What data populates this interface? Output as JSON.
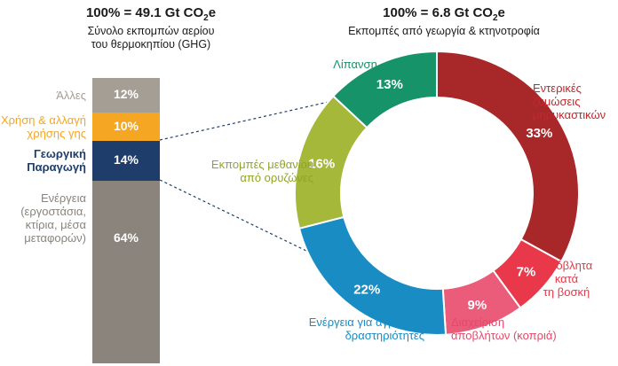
{
  "chart_data": [
    {
      "type": "bar",
      "stacked": true,
      "title_prefix": "100% = 49.1 Gt CO",
      "title_sub": "2",
      "title_suffix": "e",
      "subtitle": [
        "Σύνολο εκπομπών αερίου",
        "του θερμοκηπίου (GHG)"
      ],
      "unit": "%",
      "ylim": [
        0,
        100
      ],
      "segments": [
        {
          "label": [
            "Άλλες"
          ],
          "value": 12,
          "color": "#a59e95",
          "label_color": "#a59e95"
        },
        {
          "label": [
            "Χρήση & αλλαγή",
            "χρήσης γης"
          ],
          "value": 10,
          "color": "#f5a623",
          "label_color": "#f5a623"
        },
        {
          "label": [
            "Γεωργική",
            "Παραγωγή"
          ],
          "value": 14,
          "color": "#1f3d6b",
          "label_color": "#1f3d6b"
        },
        {
          "label": [
            "Ενέργεια",
            "(εργοστάσια,",
            "κτίρια, μέσα",
            "μεταφορών)"
          ],
          "value": 64,
          "color": "#8a847c",
          "label_color": "#8a847c"
        }
      ]
    },
    {
      "type": "pie",
      "donut": true,
      "title_prefix": "100% = 6.8 Gt CO",
      "title_sub": "2",
      "title_suffix": "e",
      "subtitle": [
        "Εκπομπές από γεωργία & κτηνοτροφία"
      ],
      "unit": "%",
      "slices": [
        {
          "label": [
            "Εντερικές",
            "ζυμώσεις",
            "μηρυκαστικών"
          ],
          "value": 33,
          "color": "#a8282a",
          "label_color": "#c0282d"
        },
        {
          "label": [
            "Απόβλητα",
            "κατά",
            "τη βοσκή"
          ],
          "value": 7,
          "color": "#e8384a",
          "label_color": "#e8384a"
        },
        {
          "label": [
            "Διαχείριση",
            "αποβλήτων (κοπριά)"
          ],
          "value": 9,
          "color": "#ea5c79",
          "label_color": "#e34a6a"
        },
        {
          "label": [
            "Ενέργεια για αγροτικές",
            "δραστηριότητες"
          ],
          "value": 22,
          "color": "#1a8cc4",
          "label_color": "#1a8cc4"
        },
        {
          "label": [
            "Εκπομπές μεθανίου",
            "από ορυζώνες"
          ],
          "value": 16,
          "color": "#a5b83a",
          "label_color": "#8fa52a"
        },
        {
          "label": [
            "Λίπανση"
          ],
          "value": 13,
          "color": "#17936a",
          "label_color": "#17936a"
        }
      ]
    }
  ]
}
